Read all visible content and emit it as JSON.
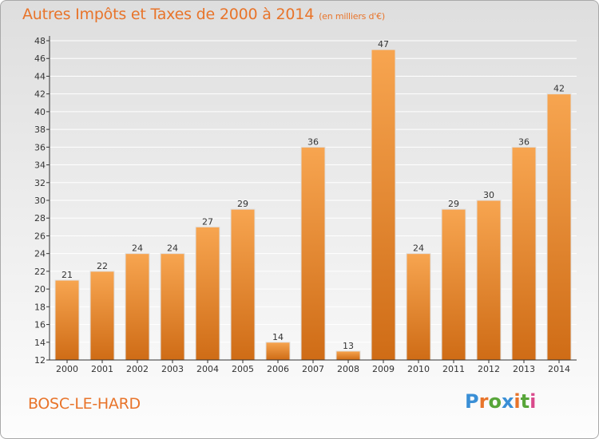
{
  "header": {
    "title": "Autres Impôts et Taxes de 2000 à 2014",
    "unit": "(en milliers d'€)"
  },
  "footer": {
    "place": "BOSC-LE-HARD",
    "logo": "Proxiti"
  },
  "colors": {
    "bar_light": "#f7a550",
    "bar_dark": "#cf6c16",
    "title": "#e8742a",
    "axis": "#333333",
    "grid": "#ffffff"
  },
  "chart_data": {
    "type": "bar",
    "title": "Autres Impôts et Taxes de 2000 à 2014",
    "subtitle": "(en milliers d'€)",
    "xlabel": "",
    "ylabel": "",
    "categories": [
      "2000",
      "2001",
      "2002",
      "2003",
      "2004",
      "2005",
      "2006",
      "2007",
      "2008",
      "2009",
      "2010",
      "2011",
      "2012",
      "2013",
      "2014"
    ],
    "values": [
      21,
      22,
      24,
      24,
      27,
      29,
      14,
      36,
      13,
      47,
      24,
      29,
      30,
      36,
      42
    ],
    "ylim": [
      12,
      48
    ],
    "yticks": [
      12,
      14,
      16,
      18,
      20,
      22,
      24,
      26,
      28,
      30,
      32,
      34,
      36,
      38,
      40,
      42,
      44,
      46,
      48
    ],
    "grid": true,
    "data_labels": true,
    "legend": "none"
  }
}
